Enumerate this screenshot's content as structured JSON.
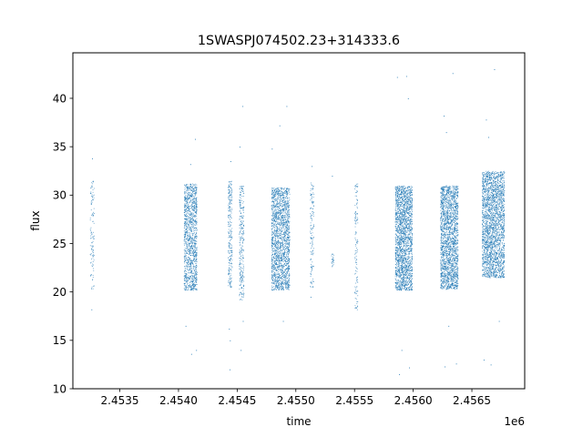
{
  "chart_data": {
    "type": "scatter",
    "title": "1SWASPJ074502.23+314333.6",
    "xlabel": "time",
    "ylabel": "flux",
    "x_offset_label": "1e6",
    "xlim": [
      2453100,
      2456950
    ],
    "ylim": [
      10,
      44.7
    ],
    "xticks": [
      2453500,
      2454000,
      2454500,
      2455000,
      2455500,
      2456000,
      2456500
    ],
    "xtick_labels": [
      "2.4535",
      "2.4540",
      "2.4545",
      "2.4550",
      "2.4555",
      "2.4560",
      "2.4565"
    ],
    "yticks": [
      10,
      15,
      20,
      25,
      30,
      35,
      40
    ],
    "ytick_labels": [
      "10",
      "15",
      "20",
      "25",
      "30",
      "35",
      "40"
    ],
    "grid": false,
    "marker_color": "#1f77b4",
    "series": [
      {
        "segments": [
          {
            "x0": 2453245,
            "x1": 2453280,
            "ylo": 20.3,
            "yhi": 31.5,
            "density": 120,
            "outliers": [
              [
                2453263,
                33.8
              ],
              [
                2453258,
                18.2
              ]
            ]
          },
          {
            "x0": 2454045,
            "x1": 2454155,
            "ylo": 20.2,
            "yhi": 31.2,
            "density": 1300,
            "outliers": [
              [
                2454060,
                16.5
              ],
              [
                2454100,
                33.2
              ],
              [
                2454140,
                35.8
              ],
              [
                2454150,
                14.0
              ],
              [
                2454108,
                13.6
              ]
            ]
          },
          {
            "x0": 2454420,
            "x1": 2454455,
            "ylo": 20.5,
            "yhi": 31.5,
            "density": 260,
            "outliers": [
              [
                2454430,
                16.2
              ],
              [
                2454438,
                15.0
              ],
              [
                2454435,
                12.0
              ],
              [
                2454442,
                33.5
              ]
            ]
          },
          {
            "x0": 2454515,
            "x1": 2454555,
            "ylo": 19.2,
            "yhi": 31.0,
            "density": 280,
            "outliers": [
              [
                2454520,
                35.0
              ],
              [
                2454545,
                39.2
              ],
              [
                2454530,
                14.0
              ],
              [
                2454548,
                17.0
              ]
            ]
          },
          {
            "x0": 2454790,
            "x1": 2454945,
            "ylo": 20.2,
            "yhi": 30.8,
            "density": 1900,
            "outliers": [
              [
                2454795,
                34.8
              ],
              [
                2454860,
                37.2
              ],
              [
                2454920,
                39.2
              ],
              [
                2454890,
                17.0
              ]
            ]
          },
          {
            "x0": 2455120,
            "x1": 2455150,
            "ylo": 20.5,
            "yhi": 31.3,
            "density": 140,
            "outliers": [
              [
                2455135,
                33.0
              ],
              [
                2455125,
                19.5
              ]
            ]
          },
          {
            "x0": 2455300,
            "x1": 2455320,
            "ylo": 22.5,
            "yhi": 24.0,
            "density": 25,
            "outliers": [
              [
                2455308,
                32.0
              ]
            ]
          },
          {
            "x0": 2455500,
            "x1": 2455525,
            "ylo": 18.2,
            "yhi": 31.2,
            "density": 130,
            "outliers": []
          },
          {
            "x0": 2455845,
            "x1": 2455990,
            "ylo": 20.2,
            "yhi": 31.0,
            "density": 2100,
            "outliers": [
              [
                2455862,
                42.2
              ],
              [
                2455940,
                42.3
              ],
              [
                2455955,
                40.0
              ],
              [
                2455880,
                11.5
              ],
              [
                2455965,
                12.2
              ],
              [
                2455900,
                14.0
              ]
            ]
          },
          {
            "x0": 2456230,
            "x1": 2456380,
            "ylo": 20.3,
            "yhi": 31.0,
            "density": 2100,
            "outliers": [
              [
                2456260,
                38.2
              ],
              [
                2456335,
                42.6
              ],
              [
                2456280,
                36.5
              ],
              [
                2456268,
                12.3
              ],
              [
                2456365,
                12.6
              ],
              [
                2456300,
                16.5
              ]
            ]
          },
          {
            "x0": 2456585,
            "x1": 2456775,
            "ylo": 21.5,
            "yhi": 32.5,
            "density": 2500,
            "outliers": [
              [
                2456620,
                37.8
              ],
              [
                2456690,
                43.0
              ],
              [
                2456640,
                36.0
              ],
              [
                2456600,
                13.0
              ],
              [
                2456660,
                12.5
              ],
              [
                2456730,
                17.0
              ]
            ]
          }
        ]
      }
    ]
  }
}
